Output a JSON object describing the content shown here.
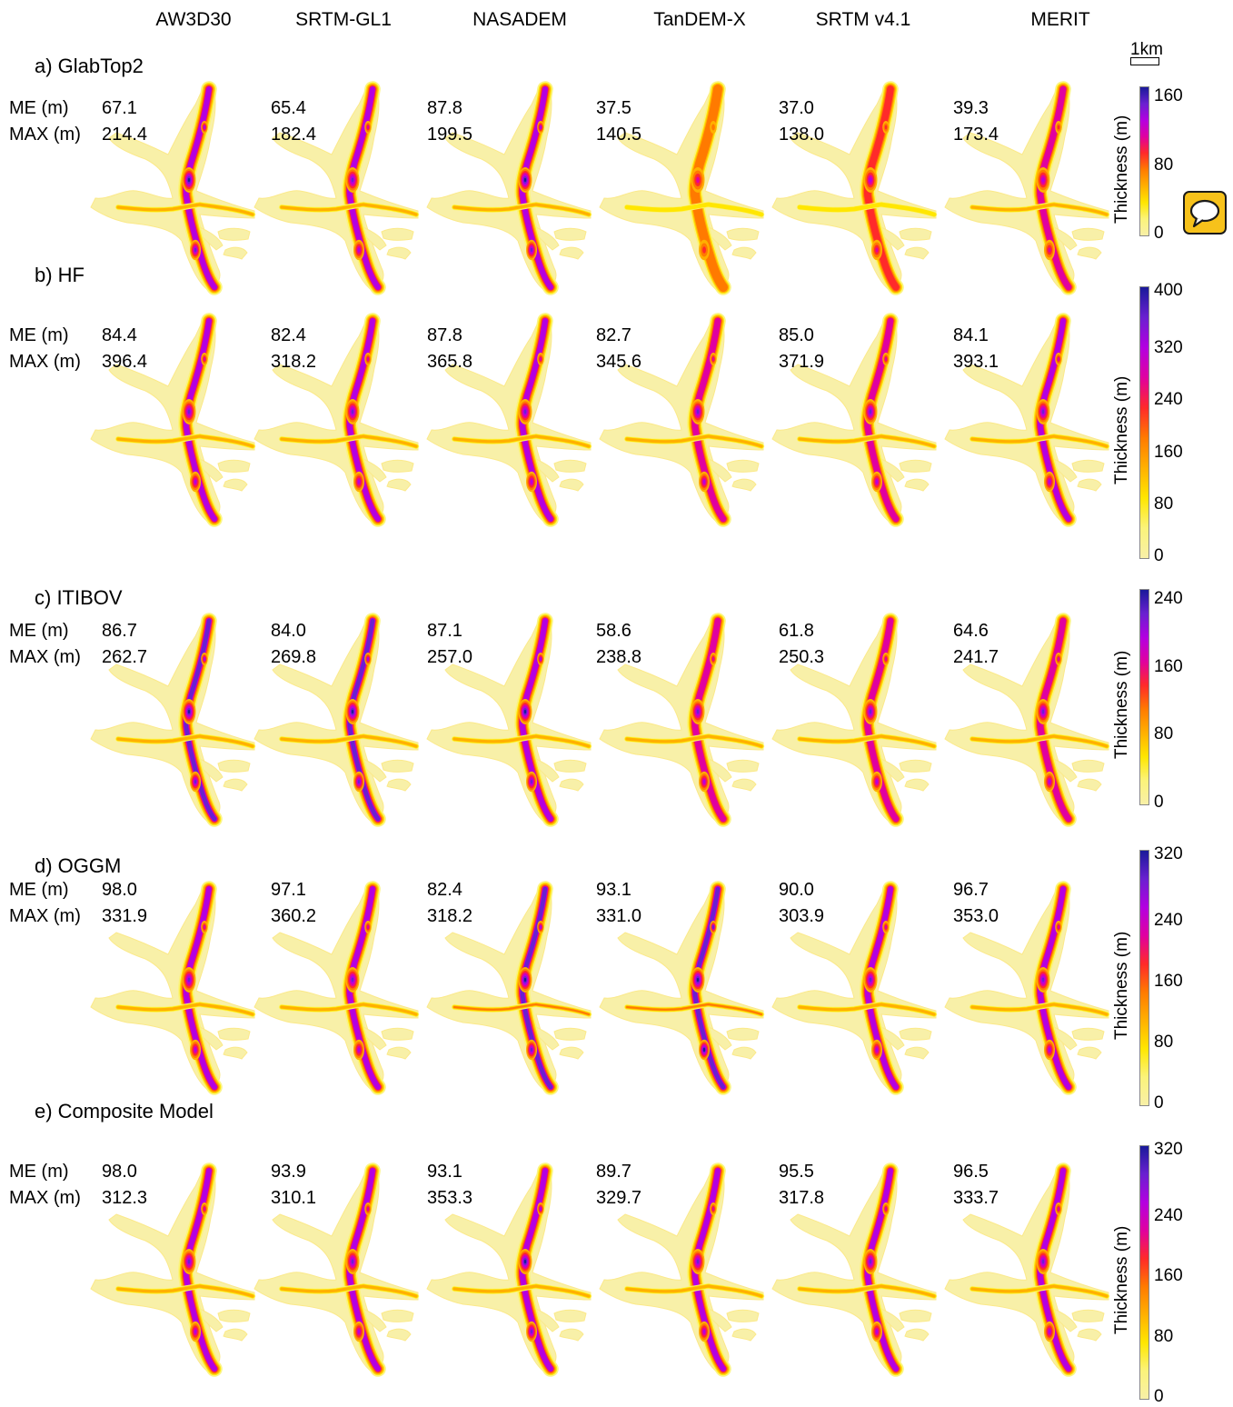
{
  "columns": [
    "AW3D30",
    "SRTM-GL1",
    "NASADEM",
    "TanDEM-X",
    "SRTM v4.1",
    "MERIT"
  ],
  "scale_bar": {
    "label": "1km"
  },
  "stat_labels": {
    "me": "ME (m)",
    "max": "MAX (m)"
  },
  "rows": [
    {
      "title": "a) GlabTop2",
      "me": [
        "67.1",
        "65.4",
        "87.8",
        "37.5",
        "37.0",
        "39.3"
      ],
      "max": [
        "214.4",
        "182.4",
        "199.5",
        "140.5",
        "138.0",
        "173.4"
      ],
      "colorbar": {
        "label": "Thickness (m)",
        "ticks": [
          "160",
          "80",
          "0"
        ]
      },
      "intensity": [
        0.75,
        0.72,
        0.78,
        0.35,
        0.45,
        0.55
      ]
    },
    {
      "title": "b) HF",
      "me": [
        "84.4",
        "82.4",
        "87.8",
        "82.7",
        "85.0",
        "84.1"
      ],
      "max": [
        "396.4",
        "318.2",
        "365.8",
        "345.6",
        "371.9",
        "393.1"
      ],
      "colorbar": {
        "label": "Thickness (m)",
        "ticks": [
          "400",
          "320",
          "240",
          "160",
          "80",
          "0"
        ]
      },
      "intensity": [
        0.7,
        0.65,
        0.68,
        0.6,
        0.62,
        0.66
      ]
    },
    {
      "title": "c) ITIBOV",
      "me": [
        "86.7",
        "84.0",
        "87.1",
        "58.6",
        "61.8",
        "64.6"
      ],
      "max": [
        "262.7",
        "269.8",
        "257.0",
        "238.8",
        "250.3",
        "241.7"
      ],
      "colorbar": {
        "label": "Thickness (m)",
        "ticks": [
          "240",
          "160",
          "80",
          "0"
        ]
      },
      "intensity": [
        0.8,
        0.8,
        0.78,
        0.6,
        0.62,
        0.63
      ]
    },
    {
      "title": "d) OGGM",
      "me": [
        "98.0",
        "97.1",
        "82.4",
        "93.1",
        "90.0",
        "96.7"
      ],
      "max": [
        "331.9",
        "360.2",
        "318.2",
        "331.0",
        "303.9",
        "353.0"
      ],
      "colorbar": {
        "label": "Thickness (m)",
        "ticks": [
          "320",
          "240",
          "160",
          "80",
          "0"
        ]
      },
      "intensity": [
        0.72,
        0.74,
        0.9,
        0.92,
        0.7,
        0.73
      ]
    },
    {
      "title": "e) Composite Model",
      "me": [
        "98.0",
        "93.9",
        "93.1",
        "89.7",
        "95.5",
        "96.5"
      ],
      "max": [
        "312.3",
        "310.1",
        "353.3",
        "329.7",
        "317.8",
        "333.7"
      ],
      "colorbar": {
        "label": "Thickness (m)",
        "ticks": [
          "320",
          "240",
          "160",
          "80",
          "0"
        ]
      },
      "intensity": [
        0.74,
        0.72,
        0.76,
        0.74,
        0.72,
        0.74
      ]
    }
  ],
  "colors": {
    "ramp": [
      "#f8f0a8",
      "#fbf37a",
      "#ffe600",
      "#ffb000",
      "#ff7a00",
      "#ff2a2a",
      "#e000a0",
      "#b400e0",
      "#6a20d0",
      "#1a1a9a"
    ]
  },
  "help_button": {
    "icon": "chat-bubble-icon"
  }
}
